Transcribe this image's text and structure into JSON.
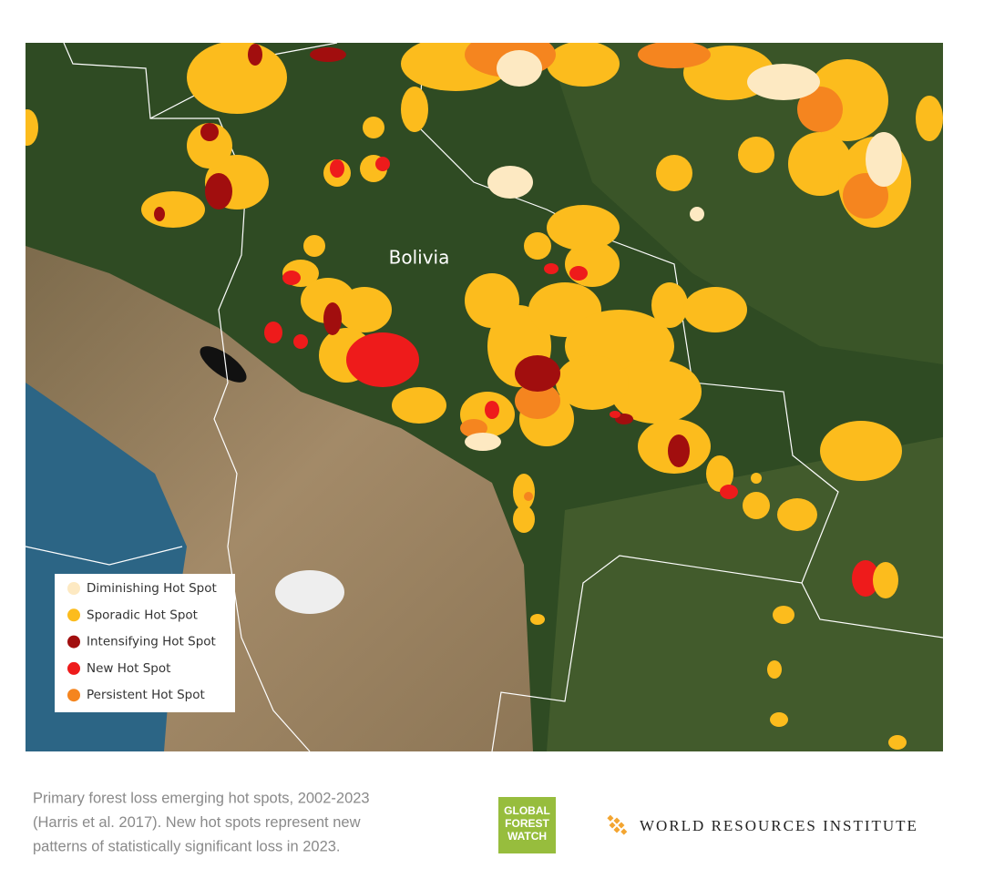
{
  "map": {
    "label": "Bolivia",
    "legend": [
      {
        "label": "Diminishing Hot Spot",
        "color": "#fde9c2"
      },
      {
        "label": "Sporadic Hot Spot",
        "color": "#fcbc1d"
      },
      {
        "label": "Intensifying Hot Spot",
        "color": "#a10e0e"
      },
      {
        "label": "New Hot Spot",
        "color": "#ee1b1b"
      },
      {
        "label": "Persistent Hot Spot",
        "color": "#f5851f"
      }
    ]
  },
  "caption": [
    "Primary forest loss emerging hot spots, 2002-2023",
    "(Harris et al. 2017). New hot spots represent new",
    "patterns of statistically significant loss in 2023."
  ],
  "logos": {
    "gfw": [
      "GLOBAL",
      "FOREST",
      "WATCH"
    ],
    "wri": "WORLD RESOURCES INSTITUTE"
  }
}
